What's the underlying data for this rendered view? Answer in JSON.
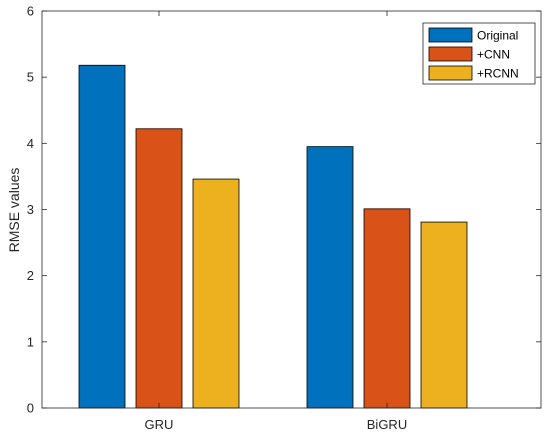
{
  "chart_data": {
    "type": "bar",
    "categories": [
      "GRU",
      "BiGRU"
    ],
    "series": [
      {
        "name": "Original",
        "values": [
          5.18,
          3.95
        ],
        "color": "#0072BD"
      },
      {
        "name": "+CNN",
        "values": [
          4.22,
          3.01
        ],
        "color": "#D95319"
      },
      {
        "name": "+RCNN",
        "values": [
          3.46,
          2.81
        ],
        "color": "#EDB120"
      }
    ],
    "ylabel": "RMSE values",
    "xlabel": "",
    "ylim": [
      0,
      6
    ],
    "yticks": [
      "0",
      "1",
      "2",
      "3",
      "4",
      "5",
      "6"
    ],
    "grid": false,
    "legend_position": "top-right"
  }
}
